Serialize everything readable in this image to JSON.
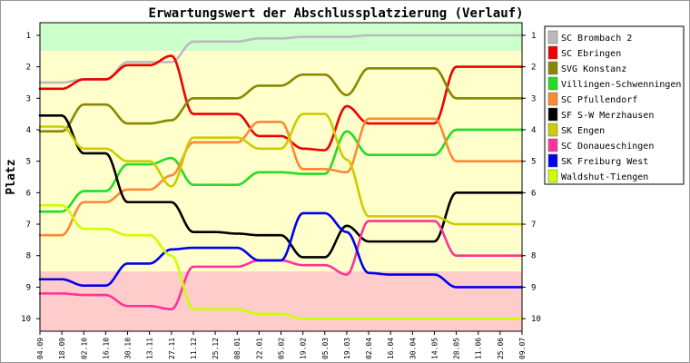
{
  "chart_data": {
    "type": "line",
    "title": "Erwartungswert der Abschlussplatzierung (Verlauf)",
    "xlabel": "",
    "ylabel": "Platz",
    "x": [
      "04.09",
      "18.09",
      "02.10",
      "16.10",
      "30.10",
      "13.11",
      "27.11",
      "11.12",
      "25.12",
      "08.01",
      "22.01",
      "05.02",
      "19.02",
      "05.03",
      "19.03",
      "02.04",
      "16.04",
      "30.04",
      "14.05",
      "28.05",
      "11.06",
      "25.06",
      "09.07"
    ],
    "ylim": [
      0.6,
      10.4
    ],
    "y_ticks": [
      1,
      2,
      3,
      4,
      5,
      6,
      7,
      8,
      9,
      10
    ],
    "y_reversed": true,
    "grid": false,
    "legend_position": "right",
    "zones": [
      {
        "from": 0.6,
        "to": 1.5,
        "color": "#ccffcc"
      },
      {
        "from": 1.5,
        "to": 8.5,
        "color": "#ffffcc"
      },
      {
        "from": 8.5,
        "to": 10.4,
        "color": "#ffcccc"
      }
    ],
    "series": [
      {
        "name": "SC Brombach 2",
        "color": "#bbbbbb",
        "values": [
          2.5,
          2.5,
          2.4,
          2.4,
          1.85,
          1.85,
          1.85,
          1.2,
          1.2,
          1.2,
          1.1,
          1.1,
          1.05,
          1.05,
          1.05,
          1.0,
          1.0,
          1.0,
          1.0,
          1.0,
          1.0,
          1.0,
          1.0
        ]
      },
      {
        "name": "SC Ebringen",
        "color": "#ee0000",
        "values": [
          2.7,
          2.7,
          2.4,
          2.4,
          1.95,
          1.95,
          1.65,
          3.5,
          3.5,
          3.5,
          4.2,
          4.2,
          4.6,
          4.65,
          3.25,
          3.8,
          3.8,
          3.8,
          3.8,
          2.0,
          2.0,
          2.0,
          2.0
        ]
      },
      {
        "name": "SVG Konstanz",
        "color": "#888800",
        "values": [
          4.05,
          4.05,
          3.2,
          3.2,
          3.8,
          3.8,
          3.7,
          3.0,
          3.0,
          3.0,
          2.6,
          2.6,
          2.25,
          2.25,
          2.9,
          2.05,
          2.05,
          2.05,
          2.05,
          3.0,
          3.0,
          3.0,
          3.0
        ]
      },
      {
        "name": "Villingen-Schwenningen",
        "color": "#22dd22",
        "values": [
          6.6,
          6.6,
          5.95,
          5.95,
          5.1,
          5.1,
          4.9,
          5.75,
          5.75,
          5.75,
          5.35,
          5.35,
          5.4,
          5.4,
          4.05,
          4.8,
          4.8,
          4.8,
          4.8,
          4.0,
          4.0,
          4.0,
          4.0
        ]
      },
      {
        "name": "SC Pfullendorf",
        "color": "#ff8833",
        "values": [
          7.35,
          7.35,
          6.3,
          6.3,
          5.9,
          5.9,
          5.45,
          4.4,
          4.4,
          4.4,
          3.75,
          3.75,
          5.25,
          5.25,
          5.35,
          3.65,
          3.65,
          3.65,
          3.65,
          5.0,
          5.0,
          5.0,
          5.0
        ]
      },
      {
        "name": "SF S-W Merzhausen",
        "color": "#000000",
        "values": [
          3.55,
          3.55,
          4.75,
          4.75,
          6.3,
          6.3,
          6.3,
          7.25,
          7.25,
          7.3,
          7.35,
          7.35,
          8.05,
          8.05,
          7.05,
          7.55,
          7.55,
          7.55,
          7.55,
          6.0,
          6.0,
          6.0,
          6.0
        ]
      },
      {
        "name": "SK Engen",
        "color": "#cccc00",
        "values": [
          3.9,
          3.9,
          4.6,
          4.6,
          5.0,
          5.0,
          5.8,
          4.25,
          4.25,
          4.25,
          4.6,
          4.6,
          3.5,
          3.5,
          4.95,
          6.75,
          6.75,
          6.75,
          6.75,
          7.0,
          7.0,
          7.0,
          7.0
        ]
      },
      {
        "name": "SC Donaueschingen",
        "color": "#ff3399",
        "values": [
          9.2,
          9.2,
          9.25,
          9.25,
          9.6,
          9.6,
          9.7,
          8.35,
          8.35,
          8.35,
          8.15,
          8.15,
          8.3,
          8.3,
          8.6,
          6.9,
          6.9,
          6.9,
          6.9,
          8.0,
          8.0,
          8.0,
          8.0
        ]
      },
      {
        "name": "SK Freiburg West",
        "color": "#0000ee",
        "values": [
          8.75,
          8.75,
          8.95,
          8.95,
          8.25,
          8.25,
          7.8,
          7.75,
          7.75,
          7.75,
          8.15,
          8.15,
          6.65,
          6.65,
          7.25,
          8.55,
          8.6,
          8.6,
          8.6,
          9.0,
          9.0,
          9.0,
          9.0
        ]
      },
      {
        "name": "Waldshut-Tiengen",
        "color": "#ccff00",
        "values": [
          6.4,
          6.4,
          7.15,
          7.15,
          7.35,
          7.35,
          8.0,
          9.7,
          9.7,
          9.7,
          9.85,
          9.85,
          10.0,
          10.0,
          10.0,
          10.0,
          10.0,
          10.0,
          10.0,
          10.0,
          10.0,
          10.0,
          10.0
        ]
      }
    ]
  }
}
